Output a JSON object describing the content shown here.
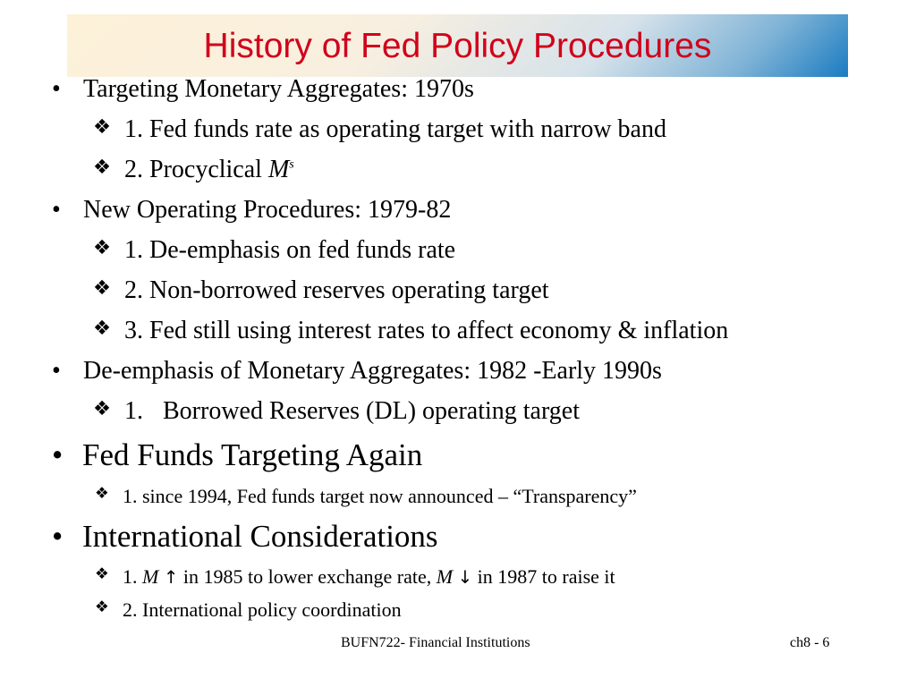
{
  "slide": {
    "title": "History of Fed Policy Procedures"
  },
  "markers": {
    "bullet": "•",
    "diamond": "❖"
  },
  "items": [
    {
      "level": 1,
      "text": "Targeting Monetary Aggregates: 1970s"
    },
    {
      "level": 2,
      "text": "1. Fed funds rate as operating target with narrow band"
    },
    {
      "level": 2,
      "prefix": "2. Procyclical ",
      "italic": "M",
      "sup": "s"
    },
    {
      "level": 1,
      "text": "New Operating Procedures: 1979-82"
    },
    {
      "level": 2,
      "text": "1. De-emphasis on fed funds rate"
    },
    {
      "level": 2,
      "text": "2. Non-borrowed reserves operating target"
    },
    {
      "level": 2,
      "text": "3. Fed still using interest rates to affect economy & inflation"
    },
    {
      "level": 1,
      "text": "De-emphasis of Monetary Aggregates: 1982 -Early 1990s"
    },
    {
      "level": 2,
      "num": "1.",
      "text": "Borrowed Reserves (DL) operating target"
    },
    {
      "level": 1,
      "text": "Fed Funds Targeting Again"
    },
    {
      "level": 2,
      "text": "1. since 1994, Fed funds target now announced – “Transparency”"
    },
    {
      "level": 1,
      "text": "International Considerations"
    },
    {
      "level": 2,
      "part1": "1. ",
      "m1": "M",
      "arrow_up": "↑",
      "part2": " in 1985 to lower exchange rate, ",
      "m2": "M",
      "arrow_down": "↓",
      "part3": " in 1987 to raise it"
    },
    {
      "level": 2,
      "text": "2. International policy coordination"
    }
  ],
  "footer": {
    "course": "BUFN722- Financial Institutions",
    "page": "ch8 - 6"
  }
}
